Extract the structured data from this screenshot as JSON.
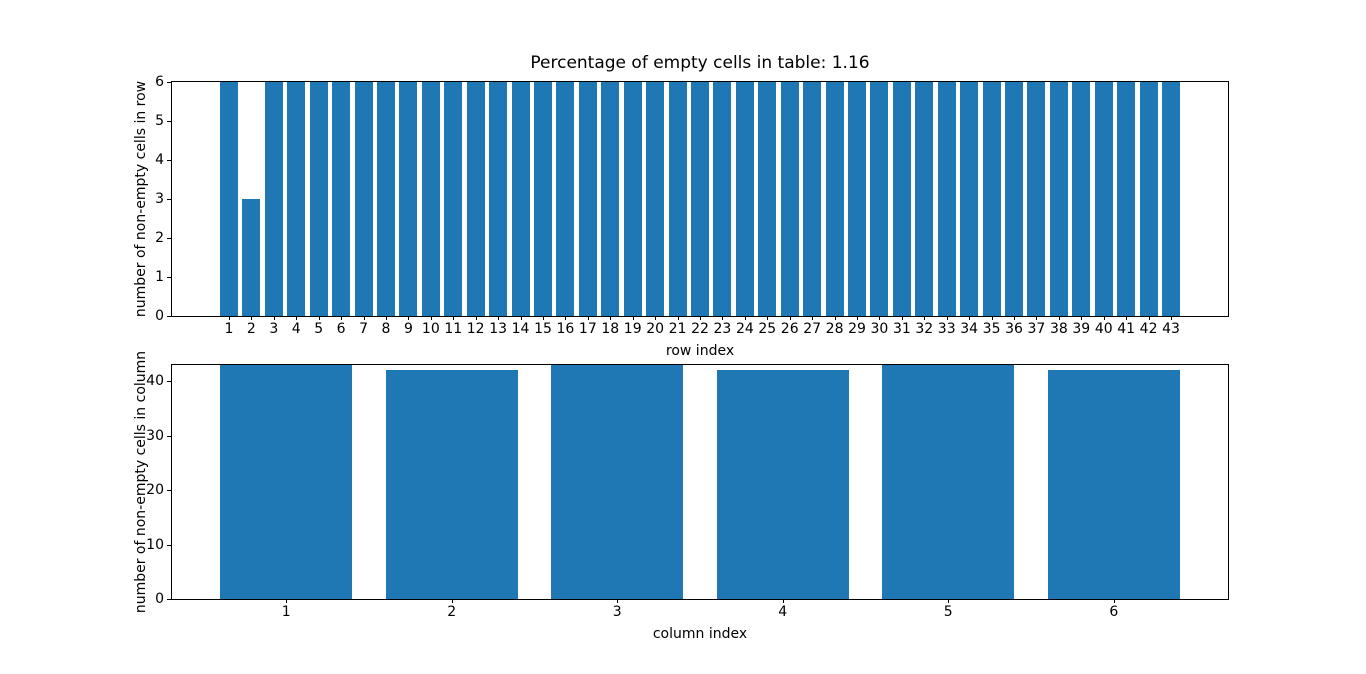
{
  "figure": {
    "background": "#ffffff"
  },
  "chart_data": [
    {
      "type": "bar",
      "title": "Percentage of empty cells in table: 1.16",
      "xlabel": "row index",
      "ylabel": "number of non-empty cells in row",
      "bar_color": "#1f77b4",
      "categories": [
        1,
        2,
        3,
        4,
        5,
        6,
        7,
        8,
        9,
        10,
        11,
        12,
        13,
        14,
        15,
        16,
        17,
        18,
        19,
        20,
        21,
        22,
        23,
        24,
        25,
        26,
        27,
        28,
        29,
        30,
        31,
        32,
        33,
        34,
        35,
        36,
        37,
        38,
        39,
        40,
        41,
        42,
        43
      ],
      "values": [
        6,
        3,
        6,
        6,
        6,
        6,
        6,
        6,
        6,
        6,
        6,
        6,
        6,
        6,
        6,
        6,
        6,
        6,
        6,
        6,
        6,
        6,
        6,
        6,
        6,
        6,
        6,
        6,
        6,
        6,
        6,
        6,
        6,
        6,
        6,
        6,
        6,
        6,
        6,
        6,
        6,
        6,
        6
      ],
      "ylim": [
        0,
        6
      ],
      "yticks": [
        0,
        1,
        2,
        3,
        4,
        5,
        6
      ],
      "grid": false,
      "legend": "none"
    },
    {
      "type": "bar",
      "title": "",
      "xlabel": "column index",
      "ylabel": "number of non-empty cells in column",
      "bar_color": "#1f77b4",
      "categories": [
        1,
        2,
        3,
        4,
        5,
        6
      ],
      "values": [
        43,
        42,
        43,
        42,
        43,
        42
      ],
      "ylim": [
        0,
        43
      ],
      "yticks": [
        0,
        10,
        20,
        30,
        40
      ],
      "grid": false,
      "legend": "none"
    }
  ]
}
